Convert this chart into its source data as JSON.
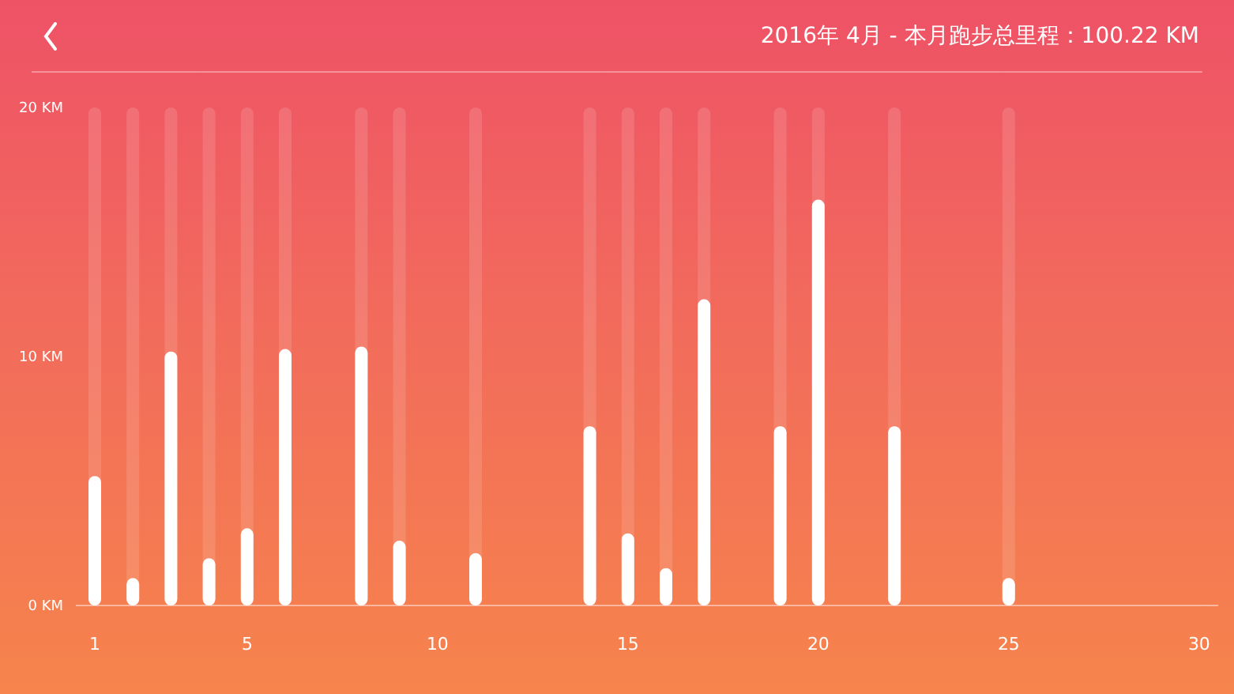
{
  "chart_data": {
    "type": "bar",
    "title": "2016年 4月 - 本月跑步总里程：100.22 KM",
    "categories": [
      "1",
      null,
      null,
      null,
      "5",
      null,
      null,
      null,
      null,
      "10",
      null,
      null,
      null,
      null,
      "15",
      null,
      null,
      null,
      null,
      "20",
      null,
      null,
      null,
      null,
      "25",
      null,
      null,
      null,
      null,
      "30"
    ],
    "values": [
      5.2,
      1.1,
      10.2,
      1.9,
      3.1,
      10.3,
      0,
      10.4,
      2.6,
      0,
      2.1,
      0,
      0,
      7.2,
      2.9,
      1.5,
      12.3,
      0,
      7.2,
      16.3,
      0,
      7.2,
      0,
      0,
      1.1,
      0,
      0,
      0,
      0,
      0
    ],
    "color": "#ffffff",
    "ylim": [
      0,
      20
    ],
    "yticks": [
      {
        "value": 0,
        "label": "0 KM"
      },
      {
        "value": 10,
        "label": "10 KM"
      },
      {
        "value": 20,
        "label": "20 KM"
      }
    ]
  }
}
